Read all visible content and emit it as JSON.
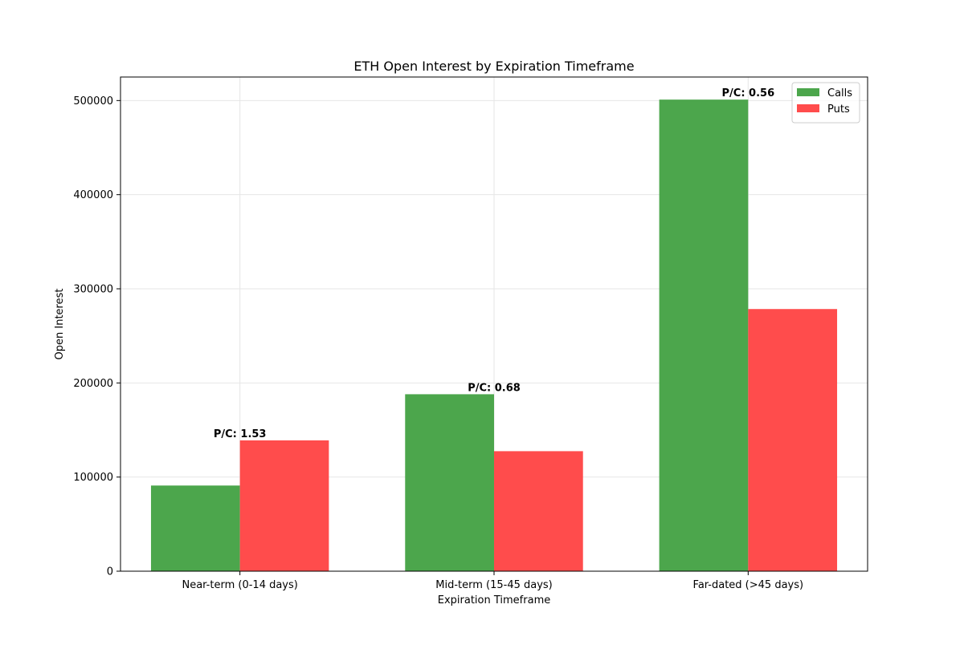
{
  "chart_data": {
    "type": "bar",
    "title": "ETH Open Interest by Expiration Timeframe",
    "xlabel": "Expiration Timeframe",
    "ylabel": "Open Interest",
    "categories": [
      "Near-term (0-14 days)",
      "Mid-term (15-45 days)",
      "Far-dated (>45 days)"
    ],
    "series": [
      {
        "name": "Calls",
        "color": "#4ca64c",
        "values": [
          91000,
          188000,
          501000
        ]
      },
      {
        "name": "Puts",
        "color": "#ff4c4c",
        "values": [
          139000,
          127500,
          278500
        ]
      }
    ],
    "annotations": [
      "P/C: 1.53",
      "P/C: 0.68",
      "P/C: 0.56"
    ],
    "ylim": [
      0,
      525000
    ],
    "yticks": [
      0,
      100000,
      200000,
      300000,
      400000,
      500000
    ],
    "ytick_labels": [
      "0",
      "100000",
      "200000",
      "300000",
      "400000",
      "500000"
    ],
    "grid": true,
    "legend_position": "top-right"
  }
}
